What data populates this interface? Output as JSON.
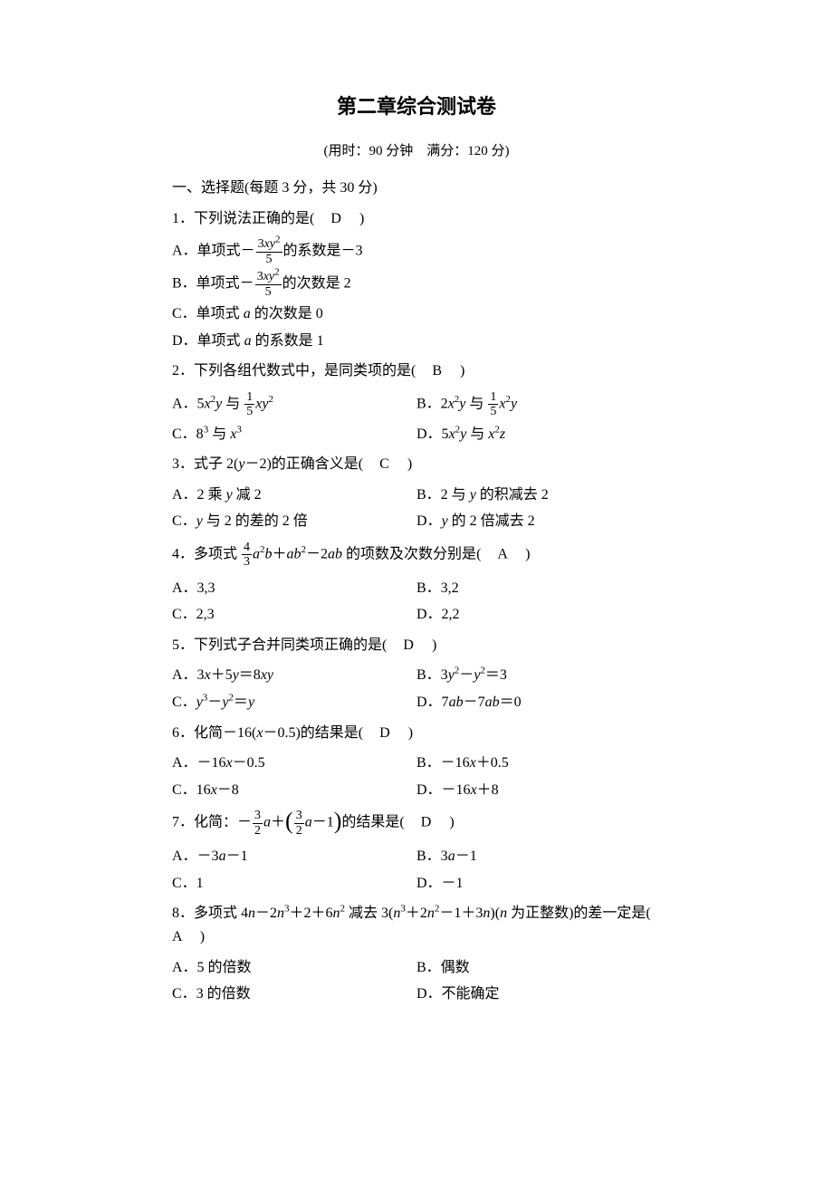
{
  "title": "第二章综合测试卷",
  "subtitle": "(用时：90 分钟　满分：120 分)",
  "section1": "一、选择题(每题 3 分，共 30 分)",
  "q1": {
    "stem": "1．下列说法正确的是",
    "answer": "D",
    "optA_pre": "A．单项式－",
    "optA_num": "3",
    "optA_den": "5",
    "optA_post": "的系数是－3",
    "optB_pre": "B．单项式－",
    "optB_num": "3",
    "optB_den": "5",
    "optB_post": "的次数是 2",
    "optC": "C．单项式 ",
    "optC_post": " 的次数是 0",
    "optD": "D．单项式 ",
    "optD_post": " 的系数是 1"
  },
  "q2": {
    "stem": "2．下列各组代数式中，是同类项的是",
    "answer": "B",
    "optA_pre": "A．5",
    "optA_mid": " 与 ",
    "optA_num": "1",
    "optA_den": "5",
    "optB_pre": "B．2",
    "optB_mid": " 与 ",
    "optB_num": "1",
    "optB_den": "5",
    "optC_pre": "C．8",
    "optC_mid": " 与 ",
    "optD_pre": "D．5",
    "optD_mid": " 与 "
  },
  "q3": {
    "stem_pre": "3．式子 2(",
    "stem_post": "－2)的正确含义是",
    "answer": "C",
    "optA": "A．2 乘 ",
    "optA_post": " 减 2",
    "optB": "B．2 与 ",
    "optB_post": " 的积减去 2",
    "optC": "C．",
    "optC_post": " 与 2 的差的 2 倍",
    "optD": "D．",
    "optD_post": " 的 2 倍减去 2"
  },
  "q4": {
    "stem_pre": "4．多项式 ",
    "num": "4",
    "den": "3",
    "stem_post": " 的项数及次数分别是",
    "answer": "A",
    "optA": "A．3,3",
    "optB": "B．3,2",
    "optC": "C．2,3",
    "optD": "D．2,2"
  },
  "q5": {
    "stem": "5．下列式子合并同类项正确的是",
    "answer": "D",
    "optA_pre": "A．3",
    "optA_mid": "＋5",
    "optA_post": "＝8",
    "optB_pre": "B．3",
    "optB_mid": "－",
    "optB_post": "＝3",
    "optC_pre": "C．",
    "optC_mid": "－",
    "optC_post": "＝",
    "optD_pre": "D．7",
    "optD_mid": "－7",
    "optD_post": "＝0"
  },
  "q6": {
    "stem_pre": "6．化简－16(",
    "stem_post": "－0.5)的结果是",
    "answer": "D",
    "optA_pre": "A．－16",
    "optA_post": "－0.5",
    "optB_pre": "B．－16",
    "optB_post": "＋0.5",
    "optC_pre": "C．16",
    "optC_post": "－8",
    "optD_pre": "D．－16",
    "optD_post": "＋8"
  },
  "q7": {
    "stem_pre": "7．化简：－",
    "num1": "3",
    "den1": "2",
    "stem_mid": "＋",
    "num2": "3",
    "den2": "2",
    "stem_post": "的结果是",
    "answer": "D",
    "optA_pre": "A．－3",
    "optA_post": "－1",
    "optB_pre": "B．3",
    "optB_post": "－1",
    "optC": "C．1",
    "optD": "D．－1"
  },
  "q8": {
    "stem_pre": "8．多项式 4",
    "stem_p2": "－2",
    "stem_p3": "＋2＋6",
    "stem_p4": " 减去 3(",
    "stem_p5": "＋2",
    "stem_p6": "－1＋3",
    "stem_p7": ")(",
    "stem_p8": " 为正整数)的差一定是",
    "answer": "A",
    "optA": "A．5 的倍数",
    "optB": "B．偶数",
    "optC": "C．3 的倍数",
    "optD": "D．不能确定"
  }
}
